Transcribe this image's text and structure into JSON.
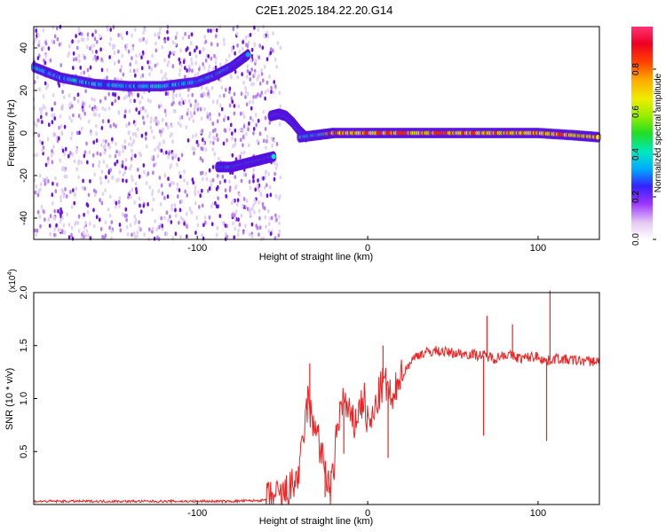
{
  "figure_title": "C2E1.2025.184.22.20.G14",
  "colors": {
    "snr_line": "#ee2222",
    "axis": "#000000"
  },
  "chart_data": [
    {
      "type": "heatmap",
      "xlabel": "Height of straight line (km)",
      "ylabel": "Frequency (Hz)",
      "xlim": [
        -196,
        136
      ],
      "ylim": [
        -50,
        50
      ],
      "xticks": [
        -100,
        0,
        100
      ],
      "yticks": [
        -40,
        -20,
        0,
        20,
        40
      ],
      "colorbar": {
        "label": "Normalized spectral amplitude",
        "range": [
          0,
          1
        ],
        "ticks": [
          "0.0",
          "0.2",
          "0.4",
          "0.6",
          "0.8"
        ],
        "tick_values": [
          0,
          0.2,
          0.4,
          0.6,
          0.8
        ]
      },
      "traces": [
        {
          "x": [
            -196,
            -180,
            -160,
            -140,
            -120,
            -100,
            -90,
            -80,
            -75,
            -70
          ],
          "y": [
            31,
            26,
            23,
            22,
            22,
            24,
            27,
            31,
            34,
            37
          ]
        },
        {
          "x": [
            -88,
            -80,
            -75,
            -70,
            -65,
            -60,
            -55
          ],
          "y": [
            -16,
            -16,
            -15,
            -14,
            -13,
            -12,
            -11
          ]
        },
        {
          "x": [
            -57,
            -52,
            -48,
            -44,
            -40,
            -36
          ],
          "y": [
            8,
            9,
            8,
            5,
            1,
            -2
          ]
        },
        {
          "x": [
            -40,
            -30,
            -20,
            0,
            20,
            40,
            60,
            80,
            100,
            120,
            136
          ],
          "y": [
            -2,
            -1,
            0,
            0,
            0,
            0,
            0,
            0,
            0,
            -1,
            -2
          ]
        }
      ],
      "grid": false
    },
    {
      "type": "line",
      "xlabel": "Height of straight line (km)",
      "ylabel": "SNR (10 * v/v)",
      "y_scale_label": "(x10",
      "y_scale_exp": "4",
      "y_scale_close": ")",
      "xlim": [
        -196,
        136
      ],
      "ylim": [
        0,
        2.0
      ],
      "xticks": [
        -100,
        0,
        100
      ],
      "yticks": [
        "0.5",
        "1.0",
        "1.5",
        "2.0"
      ],
      "ytick_values": [
        0.5,
        1.0,
        1.5,
        2.0
      ],
      "series": [
        {
          "x": [
            -196,
            -160,
            -120,
            -80,
            -60,
            -50,
            -45,
            -40,
            -38,
            -35,
            -32,
            -30,
            -28,
            -25,
            -22,
            -20,
            -18,
            -15,
            -12,
            -10,
            -8,
            -5,
            -2,
            0,
            3,
            6,
            9,
            12,
            15,
            18,
            20,
            25,
            30,
            40,
            50,
            60,
            70,
            75,
            80,
            85,
            90,
            100,
            105,
            110,
            120,
            136
          ],
          "y": [
            0.03,
            0.03,
            0.03,
            0.03,
            0.04,
            0.08,
            0.15,
            0.3,
            0.6,
            1.0,
            0.7,
            0.8,
            0.5,
            0.35,
            0.1,
            0.3,
            0.7,
            1.0,
            0.9,
            0.8,
            0.75,
            0.9,
            1.0,
            0.75,
            0.8,
            1.0,
            1.15,
            1.1,
            0.9,
            1.25,
            1.2,
            1.35,
            1.42,
            1.45,
            1.43,
            1.42,
            1.4,
            1.38,
            1.42,
            1.4,
            1.38,
            1.4,
            1.35,
            1.38,
            1.36,
            1.35
          ]
        }
      ],
      "spikes": [
        {
          "x": -34,
          "y": 1.33
        },
        {
          "x": -25,
          "y": 0.07
        },
        {
          "x": -14,
          "y": 0.48
        },
        {
          "x": 9,
          "y": 1.5
        },
        {
          "x": 12,
          "y": 0.44
        },
        {
          "x": 68,
          "y": 0.65
        },
        {
          "x": 70,
          "y": 1.78
        },
        {
          "x": 85,
          "y": 1.7
        },
        {
          "x": 105,
          "y": 0.6
        },
        {
          "x": 107,
          "y": 2.02
        }
      ],
      "grid": false
    }
  ]
}
